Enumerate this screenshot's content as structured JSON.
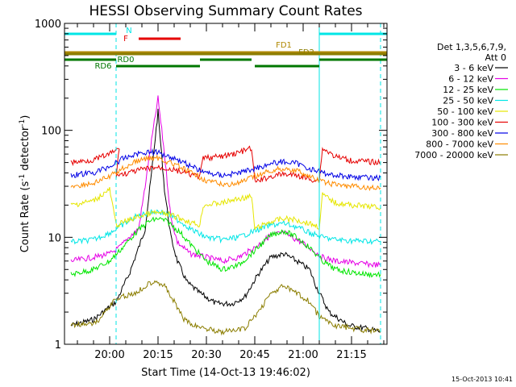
{
  "chart_data": {
    "type": "line",
    "title": "HESSI Observing Summary Count Rates",
    "xlabel": "Start Time (14-Oct-13 19:46:02)",
    "ylabel_main": "Count Rate (s",
    "ylabel_sup1": "-1",
    "ylabel_mid": " detector",
    "ylabel_sup2": "-1",
    "ylabel_end": ")",
    "y_scale": "log",
    "ylim": [
      1,
      1000
    ],
    "xlim": [
      "19:46",
      "21:26"
    ],
    "x_ticks": [
      {
        "t": "20:00",
        "label": "20:00"
      },
      {
        "t": "20:15",
        "label": "20:15"
      },
      {
        "t": "20:30",
        "label": "20:30"
      },
      {
        "t": "20:45",
        "label": "20:45"
      },
      {
        "t": "21:00",
        "label": "21:00"
      },
      {
        "t": "21:15",
        "label": "21:15"
      }
    ],
    "y_ticks": [
      {
        "v": 1,
        "label": "1"
      },
      {
        "v": 10,
        "label": "10"
      },
      {
        "v": 100,
        "label": "100"
      },
      {
        "v": 1000,
        "label": "1000"
      }
    ],
    "legend_header": [
      "Det 1,3,5,6,7,9,",
      "Att 0"
    ],
    "legend_placement": "right",
    "series": [
      {
        "name": "3 - 6 keV",
        "color": "#000000",
        "points": [
          [
            "19:48",
            1.5
          ],
          [
            "19:55",
            1.7
          ],
          [
            "20:02",
            2.5
          ],
          [
            "20:06",
            4.5
          ],
          [
            "20:09",
            8
          ],
          [
            "20:11",
            12
          ],
          [
            "20:13",
            40
          ],
          [
            "20:15",
            150
          ],
          [
            "20:17",
            28
          ],
          [
            "20:19",
            10
          ],
          [
            "20:21",
            6
          ],
          [
            "20:24",
            3.8
          ],
          [
            "20:28",
            3
          ],
          [
            "20:33",
            2.4
          ],
          [
            "20:38",
            2.4
          ],
          [
            "20:42",
            2.8
          ],
          [
            "20:46",
            4.5
          ],
          [
            "20:50",
            6.5
          ],
          [
            "20:54",
            7
          ],
          [
            "20:58",
            6
          ],
          [
            "21:02",
            5
          ],
          [
            "21:04",
            3.5
          ],
          [
            "21:08",
            2
          ],
          [
            "21:14",
            1.5
          ],
          [
            "21:20",
            1.4
          ],
          [
            "21:24",
            1.3
          ]
        ]
      },
      {
        "name": "6 - 12 keV",
        "color": "#e600e6",
        "points": [
          [
            "19:48",
            6
          ],
          [
            "19:55",
            6.5
          ],
          [
            "20:00",
            7
          ],
          [
            "20:03",
            8
          ],
          [
            "20:06",
            10
          ],
          [
            "20:09",
            12
          ],
          [
            "20:11",
            30
          ],
          [
            "20:13",
            80
          ],
          [
            "20:15",
            200
          ],
          [
            "20:17",
            60
          ],
          [
            "20:19",
            15
          ],
          [
            "20:21",
            9
          ],
          [
            "20:25",
            7
          ],
          [
            "20:30",
            6.5
          ],
          [
            "20:35",
            6
          ],
          [
            "20:40",
            6.5
          ],
          [
            "20:45",
            8
          ],
          [
            "20:50",
            10.5
          ],
          [
            "20:54",
            11
          ],
          [
            "20:58",
            9.5
          ],
          [
            "21:02",
            8
          ],
          [
            "21:06",
            6.5
          ],
          [
            "21:10",
            6
          ],
          [
            "21:15",
            5.8
          ],
          [
            "21:20",
            5.6
          ],
          [
            "21:24",
            5.5
          ]
        ]
      },
      {
        "name": "12 - 25 keV",
        "color": "#00e600",
        "points": [
          [
            "19:48",
            4.5
          ],
          [
            "19:55",
            5
          ],
          [
            "20:00",
            6
          ],
          [
            "20:04",
            8
          ],
          [
            "20:08",
            11
          ],
          [
            "20:12",
            14
          ],
          [
            "20:15",
            15
          ],
          [
            "20:18",
            14
          ],
          [
            "20:22",
            11
          ],
          [
            "20:26",
            8
          ],
          [
            "20:30",
            6
          ],
          [
            "20:35",
            5
          ],
          [
            "20:40",
            5.5
          ],
          [
            "20:45",
            7.5
          ],
          [
            "20:50",
            10.5
          ],
          [
            "20:54",
            11.5
          ],
          [
            "20:58",
            10
          ],
          [
            "21:02",
            8
          ],
          [
            "21:06",
            6
          ],
          [
            "21:10",
            5
          ],
          [
            "21:15",
            4.7
          ],
          [
            "21:20",
            4.5
          ],
          [
            "21:24",
            4.5
          ]
        ]
      },
      {
        "name": "25 - 50 keV",
        "color": "#00e6e6",
        "points": [
          [
            "19:48",
            9
          ],
          [
            "19:55",
            9.5
          ],
          [
            "20:00",
            11
          ],
          [
            "20:04",
            13
          ],
          [
            "20:08",
            15.5
          ],
          [
            "20:12",
            17
          ],
          [
            "20:15",
            17.5
          ],
          [
            "20:18",
            16.5
          ],
          [
            "20:22",
            14
          ],
          [
            "20:26",
            11.5
          ],
          [
            "20:30",
            10
          ],
          [
            "20:35",
            9.5
          ],
          [
            "20:40",
            10
          ],
          [
            "20:45",
            11.5
          ],
          [
            "20:50",
            13
          ],
          [
            "20:54",
            13.5
          ],
          [
            "20:58",
            12.5
          ],
          [
            "21:02",
            11
          ],
          [
            "21:06",
            10
          ],
          [
            "21:10",
            9.5
          ],
          [
            "21:15",
            9.3
          ],
          [
            "21:20",
            9.2
          ],
          [
            "21:24",
            9.2
          ]
        ]
      },
      {
        "name": "50 - 100 keV",
        "color": "#e6e600",
        "points": [
          [
            "19:48",
            20
          ],
          [
            "19:55",
            22
          ],
          [
            "20:00",
            28
          ],
          [
            "20:02",
            13
          ],
          [
            "20:06",
            14.5
          ],
          [
            "20:10",
            16
          ],
          [
            "20:14",
            17
          ],
          [
            "20:18",
            16.5
          ],
          [
            "20:22",
            15
          ],
          [
            "20:26",
            13.5
          ],
          [
            "20:28",
            13
          ],
          [
            "20:29",
            20
          ],
          [
            "20:35",
            21
          ],
          [
            "20:40",
            23
          ],
          [
            "20:44",
            24
          ],
          [
            "20:45",
            12
          ],
          [
            "20:50",
            14
          ],
          [
            "20:54",
            15
          ],
          [
            "20:58",
            14.5
          ],
          [
            "21:02",
            13.5
          ],
          [
            "21:05",
            12.5
          ],
          [
            "21:06",
            25
          ],
          [
            "21:10",
            21
          ],
          [
            "21:15",
            20
          ],
          [
            "21:20",
            19.5
          ],
          [
            "21:24",
            19
          ]
        ]
      },
      {
        "name": "100 - 300 keV",
        "color": "#e60000",
        "points": [
          [
            "19:48",
            50
          ],
          [
            "19:55",
            53
          ],
          [
            "20:00",
            60
          ],
          [
            "20:03",
            68
          ],
          [
            "20:02",
            38
          ],
          [
            "20:06",
            40
          ],
          [
            "20:10",
            43
          ],
          [
            "20:14",
            45
          ],
          [
            "20:18",
            44
          ],
          [
            "20:22",
            41
          ],
          [
            "20:26",
            38
          ],
          [
            "20:28",
            37
          ],
          [
            "20:29",
            55
          ],
          [
            "20:35",
            57
          ],
          [
            "20:40",
            62
          ],
          [
            "20:44",
            68
          ],
          [
            "20:45",
            33
          ],
          [
            "20:50",
            37
          ],
          [
            "20:54",
            39
          ],
          [
            "20:58",
            38
          ],
          [
            "21:02",
            35
          ],
          [
            "21:05",
            34
          ],
          [
            "21:06",
            68
          ],
          [
            "21:10",
            57
          ],
          [
            "21:15",
            52
          ],
          [
            "21:20",
            51
          ],
          [
            "21:24",
            50
          ]
        ]
      },
      {
        "name": "300 - 800 keV",
        "color": "#0000e6",
        "points": [
          [
            "19:48",
            38
          ],
          [
            "19:55",
            40
          ],
          [
            "20:00",
            46
          ],
          [
            "20:04",
            54
          ],
          [
            "20:08",
            60
          ],
          [
            "20:12",
            63
          ],
          [
            "20:15",
            62
          ],
          [
            "20:18",
            58
          ],
          [
            "20:22",
            52
          ],
          [
            "20:26",
            45
          ],
          [
            "20:30",
            40
          ],
          [
            "20:35",
            38
          ],
          [
            "20:40",
            40
          ],
          [
            "20:45",
            44
          ],
          [
            "20:50",
            49
          ],
          [
            "20:54",
            51
          ],
          [
            "20:58",
            49
          ],
          [
            "21:02",
            44
          ],
          [
            "21:06",
            40
          ],
          [
            "21:10",
            38
          ],
          [
            "21:15",
            37
          ],
          [
            "21:20",
            36
          ],
          [
            "21:24",
            36
          ]
        ]
      },
      {
        "name": "800 - 7000 keV",
        "color": "#ff8c00",
        "points": [
          [
            "19:48",
            30
          ],
          [
            "19:55",
            32
          ],
          [
            "20:00",
            37
          ],
          [
            "20:04",
            44
          ],
          [
            "20:08",
            51
          ],
          [
            "20:12",
            55
          ],
          [
            "20:15",
            55
          ],
          [
            "20:18",
            51
          ],
          [
            "20:22",
            45
          ],
          [
            "20:26",
            39
          ],
          [
            "20:30",
            34
          ],
          [
            "20:35",
            31
          ],
          [
            "20:40",
            32
          ],
          [
            "20:45",
            37
          ],
          [
            "20:50",
            42
          ],
          [
            "20:54",
            44
          ],
          [
            "20:58",
            42
          ],
          [
            "21:02",
            37
          ],
          [
            "21:06",
            33
          ],
          [
            "21:10",
            31
          ],
          [
            "21:15",
            30
          ],
          [
            "21:20",
            29
          ],
          [
            "21:24",
            29
          ]
        ]
      },
      {
        "name": "7000 - 20000 keV",
        "color": "#8b7d00",
        "points": [
          [
            "19:48",
            1.5
          ],
          [
            "19:56",
            1.6
          ],
          [
            "20:01",
            2.5
          ],
          [
            "20:04",
            2.8
          ],
          [
            "20:08",
            3
          ],
          [
            "20:11",
            3.5
          ],
          [
            "20:14",
            4
          ],
          [
            "20:17",
            3.5
          ],
          [
            "20:20",
            2.5
          ],
          [
            "20:23",
            1.7
          ],
          [
            "20:26",
            1.5
          ],
          [
            "20:35",
            1.3
          ],
          [
            "20:42",
            1.4
          ],
          [
            "20:46",
            2
          ],
          [
            "20:50",
            3
          ],
          [
            "20:54",
            3.5
          ],
          [
            "20:58",
            3
          ],
          [
            "21:02",
            2.5
          ],
          [
            "21:05",
            1.8
          ],
          [
            "21:10",
            1.5
          ],
          [
            "21:16",
            1.4
          ],
          [
            "21:24",
            1.3
          ]
        ]
      }
    ],
    "flags": [
      {
        "label": "N",
        "color": "#00e6e6",
        "segments": [
          [
            "19:46",
            "20:02"
          ],
          [
            "21:05",
            "21:26"
          ]
        ]
      },
      {
        "label": "F",
        "color": "#e60000",
        "segments": [
          [
            "20:09",
            "20:22"
          ]
        ]
      },
      {
        "label": "FD1",
        "color": "#b08800",
        "segments": [
          [
            "19:46",
            "21:26"
          ]
        ]
      },
      {
        "label": "FD2",
        "color": "#8b7d00",
        "segments": [
          [
            "19:46",
            "21:26"
          ]
        ]
      },
      {
        "label": "RD0",
        "color": "#007700",
        "segments": [
          [
            "19:46",
            "20:02"
          ],
          [
            "20:28",
            "20:44"
          ],
          [
            "21:05",
            "21:26"
          ]
        ]
      },
      {
        "label": "RD6",
        "color": "#007700",
        "segments": [
          [
            "20:02",
            "20:28"
          ],
          [
            "20:45",
            "21:05"
          ]
        ]
      }
    ],
    "vertical_markers": {
      "color": "#00e6e6",
      "solid": [
        "19:46",
        "21:05"
      ],
      "dashed": [
        "20:02",
        "21:24"
      ]
    },
    "footer": "15-Oct-2013 10:41"
  }
}
